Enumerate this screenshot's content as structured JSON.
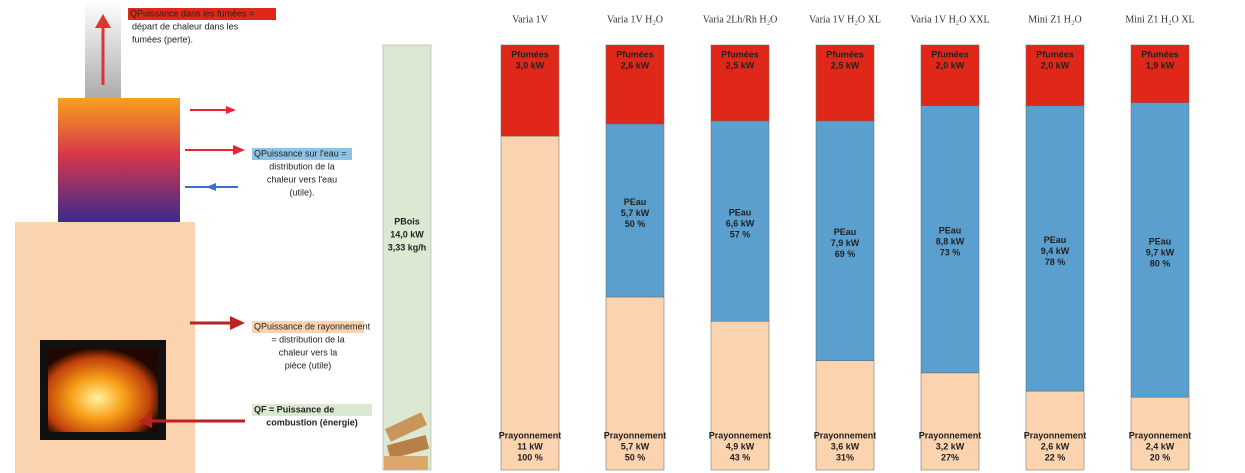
{
  "chart_data": {
    "type": "stacked-bar",
    "categories": [
      "Varia 1V",
      "Varia 1V H₂O",
      "Varia 2Lh/Rh H₂O",
      "Varia 1V H₂O XL",
      "Varia 1V H₂O XXL",
      "Mini Z1 H₂O",
      "Mini Z1 H₂O XL"
    ],
    "ylim": [
      0,
      14
    ],
    "series": [
      {
        "name": "Prayonnement",
        "color": "#fbd3ae",
        "values": [
          11,
          5.7,
          4.9,
          3.6,
          3.2,
          2.6,
          2.4
        ],
        "value_labels": [
          "11 kW",
          "5,7 kW",
          "4,9 kW",
          "3,6 kW",
          "3,2 kW",
          "2,6 kW",
          "2,4 kW"
        ],
        "share_labels": [
          "100 %",
          "50 %",
          "43 %",
          "31%",
          "27%",
          "22 %",
          "20 %"
        ]
      },
      {
        "name": "PEau",
        "color": "#5b9fcf",
        "values": [
          null,
          5.7,
          6.6,
          7.9,
          8.8,
          9.4,
          9.7
        ],
        "value_labels": [
          null,
          "5,7 kW",
          "6,6 kW",
          "7,9 kW",
          "8,8 kW",
          "9,4 kW",
          "9,7 kW"
        ],
        "share_labels": [
          null,
          "50 %",
          "57 %",
          "69 %",
          "73 %",
          "78 %",
          "80 %"
        ]
      },
      {
        "name": "Pfumées",
        "color": "#e0281a",
        "values": [
          3.0,
          2.6,
          2.5,
          2.5,
          2.0,
          2.0,
          1.9
        ],
        "value_labels": [
          "3,0 kW",
          "2,6 kW",
          "2,5 kW",
          "2,5 kW",
          "2,0 kW",
          "2,0 kW",
          "1,9 kW"
        ]
      }
    ]
  },
  "wood_bar": {
    "name": "PBois",
    "power": "14,0 kW",
    "mass": "3,33 kg/h"
  },
  "diagram": {
    "fumes": {
      "title": "QPuissance dans les fumées =",
      "text": [
        "départ de chaleur dans les",
        "fumées (perte)."
      ]
    },
    "water": {
      "title": "QPuissance sur l'eau =",
      "text": [
        "distribution de la",
        "chaleur vers l'eau",
        "(utile)."
      ]
    },
    "radiation": {
      "title": "QPuissance de rayonnement",
      "text": [
        "= distribution de la",
        "chaleur vers la",
        "pièce (utile)"
      ]
    },
    "combustion": {
      "title": "QF = Puissance de",
      "text": [
        "combustion (énergie)"
      ]
    }
  }
}
